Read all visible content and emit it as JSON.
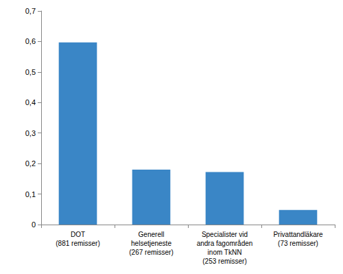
{
  "chart_data": {
    "type": "bar",
    "categories": [
      "DOT\n(881 remisser)",
      "Generell\nhelsetjeneste\n(267 remisser)",
      "Specialister vid\nandra fagområden\ninom TkNN\n(253 remisser)",
      "Privattandläkare\n(73 remisser)"
    ],
    "values": [
      0.597,
      0.18,
      0.172,
      0.048
    ],
    "color": "#3a86c6",
    "ylim": [
      0,
      0.7
    ],
    "yticks": [
      0,
      {
        "value": 0.1,
        "label": "0,1"
      },
      {
        "value": 0.2,
        "label": "0,2"
      },
      {
        "value": 0.3,
        "label": "0,3"
      },
      {
        "value": 0.4,
        "label": "0,4"
      },
      {
        "value": 0.5,
        "label": "0,5"
      },
      {
        "value": 0.6,
        "label": "0,6"
      },
      {
        "value": 0.7,
        "label": "0,7"
      }
    ],
    "grid": false
  }
}
